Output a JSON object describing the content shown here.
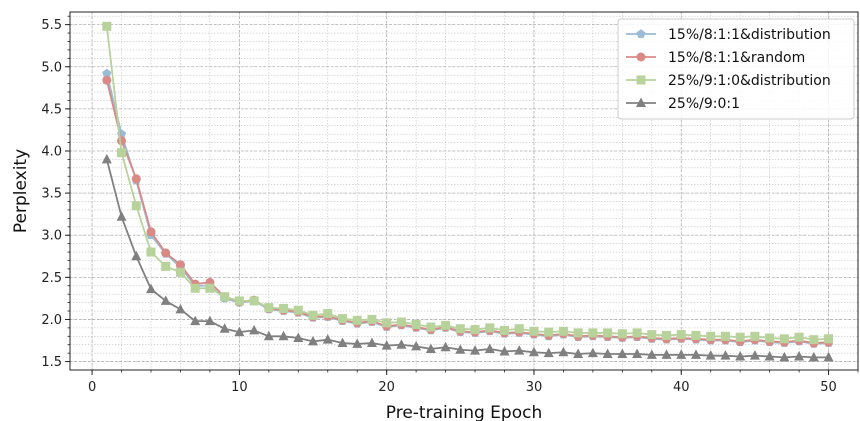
{
  "chart_data": {
    "type": "line",
    "title": "",
    "xlabel": "Pre-training Epoch",
    "ylabel": "Perplexity",
    "xlim": [
      -1.5,
      52.0
    ],
    "ylim": [
      1.4,
      5.65
    ],
    "xticks": [
      0,
      10,
      20,
      30,
      40,
      50
    ],
    "yticks": [
      1.5,
      2.0,
      2.5,
      3.0,
      3.5,
      4.0,
      4.5,
      5.0,
      5.5
    ],
    "grid": true,
    "legend_position": "top-right",
    "x": [
      1,
      2,
      3,
      4,
      5,
      6,
      7,
      8,
      9,
      10,
      11,
      12,
      13,
      14,
      15,
      16,
      17,
      18,
      19,
      20,
      21,
      22,
      23,
      24,
      25,
      26,
      27,
      28,
      29,
      30,
      31,
      32,
      33,
      34,
      35,
      36,
      37,
      38,
      39,
      40,
      41,
      42,
      43,
      44,
      45,
      46,
      47,
      48,
      49,
      50
    ],
    "series": [
      {
        "name": "15%/8:1:1&distribution",
        "color": "#9bbbd6",
        "marker": "pentagon",
        "values": [
          4.92,
          4.2,
          3.65,
          3.0,
          2.78,
          2.62,
          2.4,
          2.4,
          2.25,
          2.2,
          2.22,
          2.12,
          2.1,
          2.08,
          2.02,
          2.03,
          1.98,
          1.95,
          1.97,
          1.91,
          1.93,
          1.9,
          1.87,
          1.9,
          1.85,
          1.84,
          1.86,
          1.83,
          1.84,
          1.82,
          1.8,
          1.82,
          1.79,
          1.8,
          1.79,
          1.78,
          1.79,
          1.77,
          1.76,
          1.77,
          1.76,
          1.75,
          1.75,
          1.73,
          1.75,
          1.73,
          1.72,
          1.74,
          1.71,
          1.72
        ]
      },
      {
        "name": "15%/8:1:1&random",
        "color": "#d98a86",
        "marker": "circle",
        "values": [
          4.84,
          4.12,
          3.67,
          3.04,
          2.79,
          2.65,
          2.42,
          2.44,
          2.27,
          2.21,
          2.23,
          2.13,
          2.11,
          2.09,
          2.03,
          2.04,
          1.99,
          1.96,
          1.98,
          1.92,
          1.94,
          1.91,
          1.88,
          1.91,
          1.86,
          1.85,
          1.87,
          1.84,
          1.85,
          1.83,
          1.81,
          1.83,
          1.8,
          1.81,
          1.8,
          1.79,
          1.8,
          1.78,
          1.77,
          1.78,
          1.77,
          1.76,
          1.76,
          1.74,
          1.76,
          1.74,
          1.73,
          1.75,
          1.72,
          1.73
        ]
      },
      {
        "name": "25%/9:1:0&distribution",
        "color": "#b7d29a",
        "marker": "square",
        "values": [
          5.48,
          3.98,
          3.35,
          2.8,
          2.63,
          2.56,
          2.37,
          2.37,
          2.27,
          2.22,
          2.22,
          2.14,
          2.13,
          2.11,
          2.05,
          2.07,
          2.01,
          1.99,
          2.0,
          1.96,
          1.97,
          1.94,
          1.91,
          1.93,
          1.89,
          1.88,
          1.9,
          1.87,
          1.89,
          1.86,
          1.85,
          1.86,
          1.84,
          1.84,
          1.84,
          1.83,
          1.84,
          1.82,
          1.81,
          1.82,
          1.81,
          1.8,
          1.8,
          1.79,
          1.8,
          1.78,
          1.77,
          1.79,
          1.76,
          1.77
        ]
      },
      {
        "name": "25%/9:0:1",
        "color": "#808080",
        "marker": "triangle",
        "values": [
          3.9,
          3.22,
          2.75,
          2.36,
          2.22,
          2.12,
          1.98,
          1.98,
          1.89,
          1.85,
          1.87,
          1.8,
          1.8,
          1.78,
          1.74,
          1.76,
          1.72,
          1.71,
          1.72,
          1.69,
          1.7,
          1.68,
          1.65,
          1.67,
          1.64,
          1.63,
          1.65,
          1.62,
          1.63,
          1.61,
          1.6,
          1.61,
          1.59,
          1.6,
          1.59,
          1.59,
          1.59,
          1.58,
          1.58,
          1.58,
          1.58,
          1.57,
          1.57,
          1.56,
          1.57,
          1.56,
          1.55,
          1.56,
          1.55,
          1.55
        ]
      }
    ]
  }
}
